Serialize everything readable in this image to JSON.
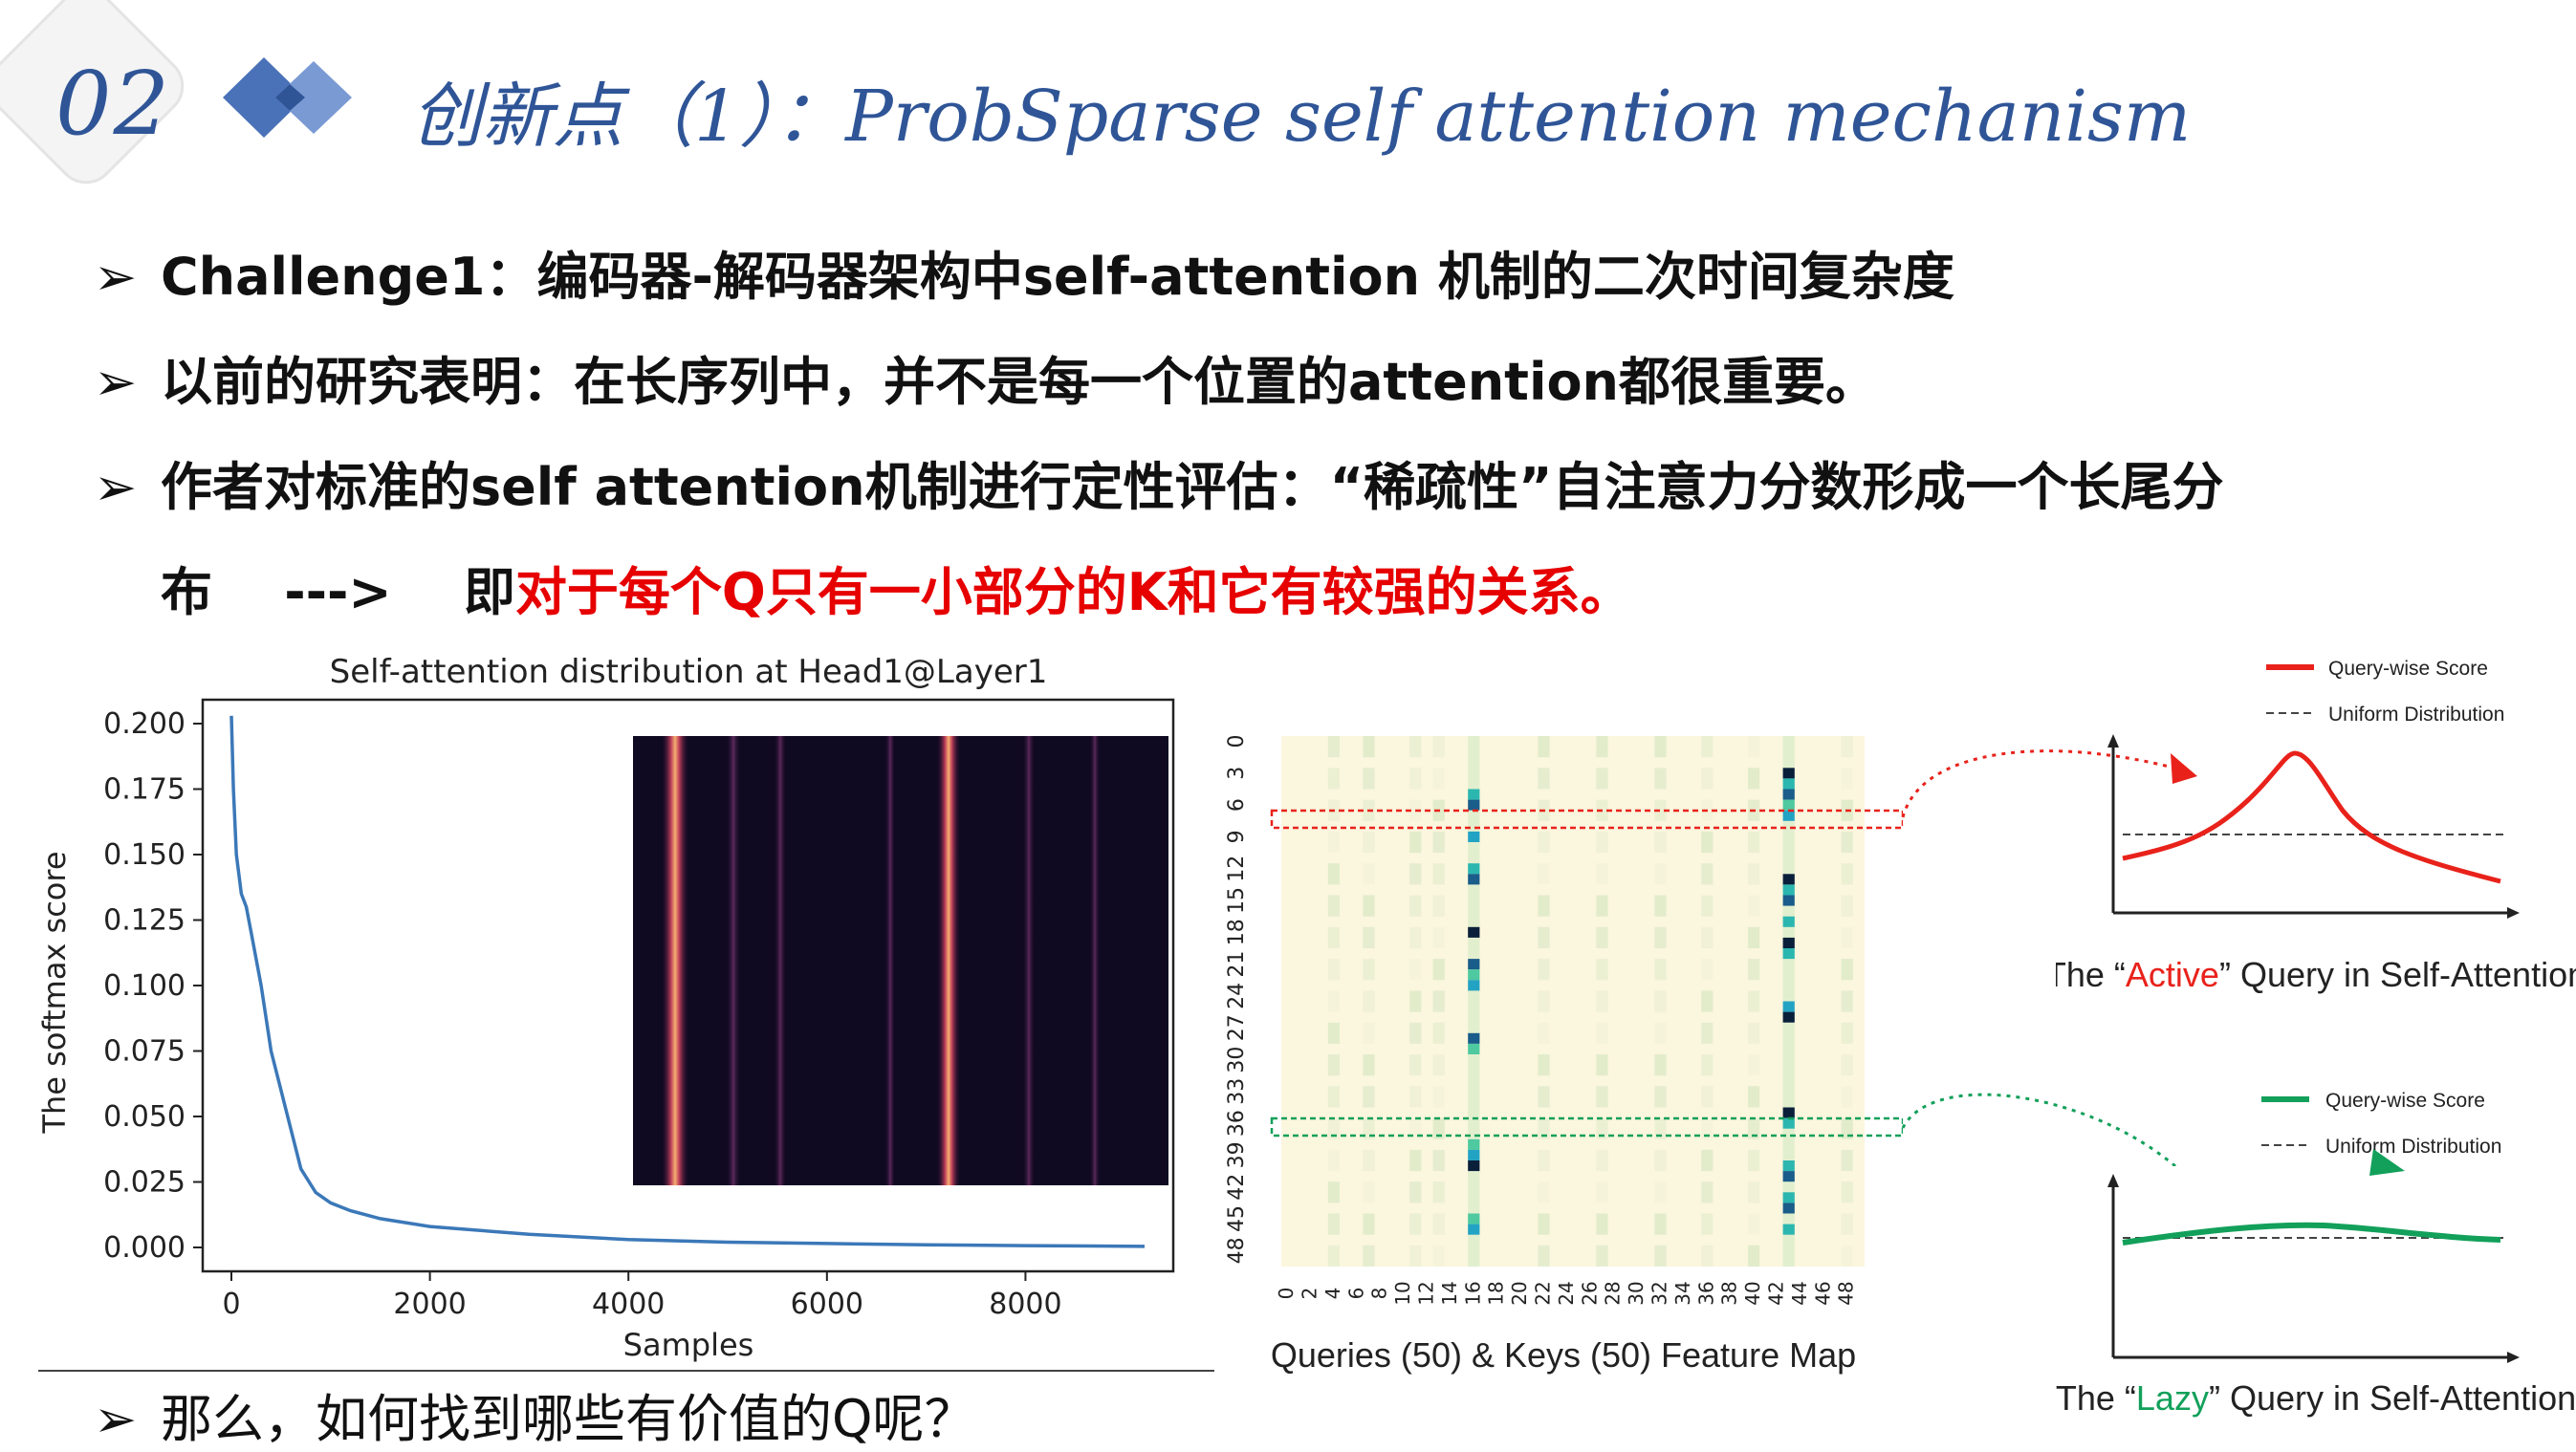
{
  "header": {
    "section_number": "02",
    "title": "创新点（1）：ProbSparse self attention mechanism"
  },
  "bullets": [
    {
      "arrow": "➢",
      "text": "Challenge1：编码器-解码器架构中self-attention 机制的二次时间复杂度"
    },
    {
      "arrow": "➢",
      "text": "以前的研究表明：在长序列中，并不是每一个位置的attention都很重要。"
    },
    {
      "arrow": "➢",
      "text": "作者对标准的self attention机制进行定性评估：“稀疏性”自注意力分数形成一个长尾分"
    }
  ],
  "continuation": {
    "prefix": "布    --->    即",
    "highlight": "对于每个Q只有一小部分的K和它有较强的关系。"
  },
  "last_bullet": {
    "arrow": "➢",
    "text": "那么，如何找到哪些有价值的Q呢？"
  },
  "chart_data": {
    "type": "line",
    "title": "Self-attention distribution at Head1@Layer1",
    "xlabel": "Samples",
    "ylabel": "The softmax score",
    "xlim": [
      0,
      9200
    ],
    "ylim": [
      0,
      0.2
    ],
    "x_ticks": [
      "0",
      "2000",
      "4000",
      "6000",
      "8000"
    ],
    "y_ticks": [
      "0.000",
      "0.025",
      "0.050",
      "0.075",
      "0.100",
      "0.125",
      "0.150",
      "0.175",
      "0.200"
    ],
    "series": [
      {
        "color": "#3b78b8",
        "x": [
          0,
          20,
          50,
          100,
          150,
          200,
          300,
          400,
          500,
          600,
          700,
          850,
          1000,
          1200,
          1500,
          2000,
          3000,
          4000,
          5000,
          6000,
          7000,
          8000,
          9200
        ],
        "y": [
          0.203,
          0.175,
          0.15,
          0.135,
          0.13,
          0.12,
          0.1,
          0.075,
          0.06,
          0.045,
          0.03,
          0.021,
          0.017,
          0.014,
          0.011,
          0.008,
          0.005,
          0.003,
          0.002,
          0.0015,
          0.001,
          0.0007,
          0.0004
        ]
      }
    ]
  },
  "heatmap": {
    "caption": "Queries (50) & Keys (50) Feature Map",
    "y_ticks": [
      "0",
      "3",
      "6",
      "9",
      "12",
      "15",
      "18",
      "21",
      "24",
      "27",
      "30",
      "33",
      "36",
      "39",
      "42",
      "45",
      "48"
    ],
    "x_ticks": [
      "0",
      "2",
      "4",
      "6",
      "8",
      "10",
      "12",
      "14",
      "16",
      "18",
      "20",
      "22",
      "24",
      "26",
      "28",
      "30",
      "32",
      "34",
      "36",
      "38",
      "40",
      "42",
      "44",
      "46",
      "48"
    ]
  },
  "active_panel": {
    "legend_score": "Query-wise Score",
    "legend_uniform": "Uniform Distribution",
    "caption_pre": "The “",
    "caption_word": "Active",
    "caption_post": "” Query in Self-Attention",
    "color": "#e8221b"
  },
  "lazy_panel": {
    "legend_score": "Query-wise Score",
    "legend_uniform": "Uniform Distribution",
    "caption_pre": "The “",
    "caption_word": "Lazy",
    "caption_post": "” Query in Self-Attention",
    "color": "#12a05a"
  }
}
